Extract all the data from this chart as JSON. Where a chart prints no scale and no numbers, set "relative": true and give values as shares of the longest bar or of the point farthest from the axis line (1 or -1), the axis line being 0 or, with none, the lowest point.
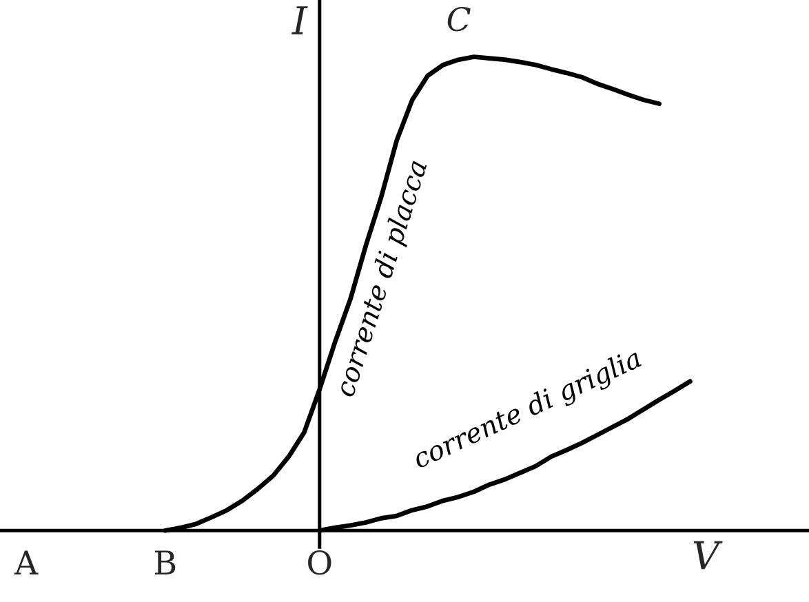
{
  "chart_data": {
    "type": "line",
    "relative": true,
    "xlabel": "V",
    "ylabel": "I",
    "grid": false,
    "legend": false,
    "marker": "none",
    "line_style": "solid",
    "categories": [
      "A",
      null,
      null,
      null,
      null,
      null,
      null,
      null,
      null,
      "B",
      null,
      null,
      null,
      null,
      null,
      null,
      null,
      null,
      null,
      "O",
      null,
      null,
      null,
      null,
      null,
      null,
      null,
      null,
      null,
      null,
      null,
      null,
      null,
      null,
      null,
      null,
      null,
      null,
      null,
      null,
      null,
      null,
      null,
      null,
      null,
      null,
      null
    ],
    "series": [
      {
        "name": "corrente di placca",
        "color": "#000000",
        "values": [
          null,
          null,
          null,
          null,
          null,
          null,
          null,
          null,
          null,
          0,
          0.006,
          0.014,
          0.028,
          0.043,
          0.063,
          0.088,
          0.116,
          0.156,
          0.207,
          0.298,
          0.398,
          0.489,
          0.602,
          0.705,
          0.824,
          0.909,
          0.96,
          0.983,
          0.994,
          1,
          0.997,
          0.994,
          0.989,
          0.983,
          0.974,
          0.966,
          0.957,
          0.943,
          0.932,
          0.92,
          0.909,
          0.901,
          null,
          null,
          null,
          null,
          null
        ]
      },
      {
        "name": "corrente di griglia",
        "color": "#000000",
        "values": [
          null,
          null,
          null,
          null,
          null,
          null,
          null,
          null,
          null,
          null,
          null,
          null,
          null,
          null,
          null,
          null,
          null,
          null,
          null,
          0,
          0.006,
          0.011,
          0.017,
          0.026,
          0.031,
          0.043,
          0.051,
          0.063,
          0.071,
          0.082,
          0.097,
          0.108,
          0.122,
          0.136,
          0.156,
          0.17,
          0.185,
          0.202,
          0.219,
          0.236,
          0.256,
          0.276,
          0.295,
          0.315,
          null,
          null,
          null
        ]
      }
    ],
    "annotations": [
      "C"
    ]
  }
}
